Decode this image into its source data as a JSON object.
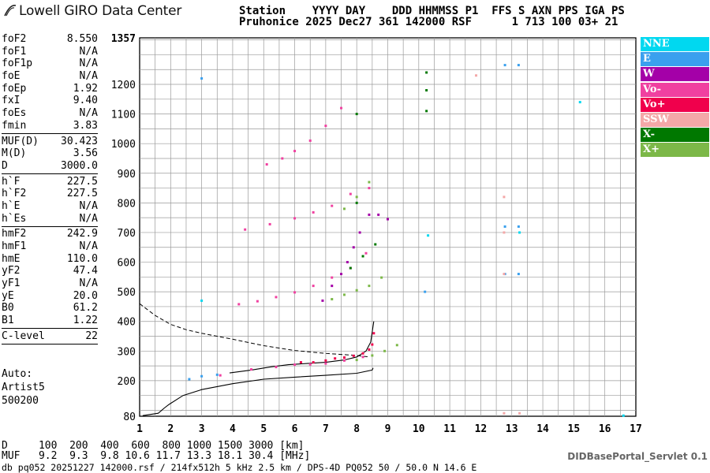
{
  "logo_text": "Lowell GIRO Data Center",
  "header": {
    "line1": "Station    YYYY DAY    DDD HHMMSS P1  FFS S AXN PPS IGA PS",
    "line2": "Pruhonice 2025 Dec27 361 142000 RSF      1 713 100 03+ 21"
  },
  "params": [
    [
      [
        "foF2",
        "8.550"
      ],
      [
        "foF1",
        "N/A"
      ],
      [
        "foF1p",
        "N/A"
      ],
      [
        "foE",
        "N/A"
      ],
      [
        "foEp",
        "1.92"
      ],
      [
        "fxI",
        "9.40"
      ],
      [
        "foEs",
        "N/A"
      ],
      [
        "fmin",
        "3.83"
      ]
    ],
    [
      [
        "MUF(D)",
        "30.423"
      ],
      [
        "M(D)",
        "3.56"
      ],
      [
        "D",
        "3000.0"
      ]
    ],
    [
      [
        "h`F",
        "227.5"
      ],
      [
        "h`F2",
        "227.5"
      ],
      [
        "h`E",
        "N/A"
      ],
      [
        "h`Es",
        "N/A"
      ]
    ],
    [
      [
        "hmF2",
        "242.9"
      ],
      [
        "hmF1",
        "N/A"
      ],
      [
        "hmE",
        "110.0"
      ],
      [
        "yF2",
        "47.4"
      ],
      [
        "yF1",
        "N/A"
      ],
      [
        "yE",
        "20.0"
      ],
      [
        "B0",
        "61.2"
      ],
      [
        "B1",
        "1.22"
      ]
    ],
    [
      [
        "C-level",
        "22"
      ]
    ]
  ],
  "auto": {
    "line1": "Auto:",
    "line2": "Artist5",
    "line3": "500200"
  },
  "legend": [
    {
      "label": "NNE",
      "color": "#00d8f0"
    },
    {
      "label": "E",
      "color": "#3aa0ee"
    },
    {
      "label": "W",
      "color": "#a400a8"
    },
    {
      "label": "Vo-",
      "color": "#f040a0"
    },
    {
      "label": "Vo+",
      "color": "#f0004c"
    },
    {
      "label": "SSW",
      "color": "#f4a8a8"
    },
    {
      "label": "X-",
      "color": "#007800"
    },
    {
      "label": "X+",
      "color": "#7cb848"
    }
  ],
  "bottom": {
    "d_row": "D     100  200  400  600  800 1000 1500 3000 [km]",
    "muf_row": "MUF   9.2  9.3  9.8 10.6 11.7 13.3 18.1 30.4 [MHz]",
    "info": "db pq052 20251227 142000.rsf / 214fx512h 5 kHz 2.5 km / DPS-4D PQ052 50 / 50.0 N 14.6 E"
  },
  "servlet": "DIDBasePortal_Servlet 0.1",
  "chart_data": {
    "type": "scatter",
    "xlabel": "",
    "ylabel": "",
    "x_ticks": [
      "1",
      "2",
      "3",
      "4",
      "5",
      "6",
      "7",
      "8",
      "9",
      "10",
      "11",
      "12",
      "13",
      "14",
      "15",
      "16",
      "17"
    ],
    "y_ticks": [
      "1357",
      "1200",
      "1100",
      "1000",
      "900",
      "800",
      "700",
      "600",
      "500",
      "400",
      "300",
      "200",
      "80"
    ],
    "xlim": [
      1,
      17
    ],
    "ylim": [
      80,
      1357
    ],
    "grid": true,
    "series": [
      {
        "name": "Vo+",
        "color": "#f0004c",
        "points": [
          [
            6.2,
            262
          ],
          [
            6.6,
            262
          ],
          [
            7.0,
            268
          ],
          [
            7.3,
            275
          ],
          [
            7.6,
            278
          ],
          [
            7.9,
            284
          ],
          [
            8.2,
            292
          ],
          [
            8.4,
            305
          ],
          [
            8.5,
            322
          ],
          [
            8.55,
            360
          ]
        ]
      },
      {
        "name": "W",
        "color": "#a400a8",
        "points": [
          [
            6.9,
            470
          ],
          [
            7.2,
            520
          ],
          [
            7.5,
            560
          ],
          [
            7.7,
            600
          ],
          [
            7.9,
            650
          ],
          [
            8.1,
            700
          ],
          [
            8.4,
            760
          ],
          [
            8.7,
            760
          ],
          [
            9.0,
            745
          ]
        ]
      },
      {
        "name": "Vo-",
        "color": "#f040a0",
        "points": [
          [
            4.2,
            458
          ],
          [
            4.8,
            468
          ],
          [
            5.4,
            482
          ],
          [
            6.0,
            498
          ],
          [
            6.6,
            520
          ],
          [
            7.2,
            548
          ],
          [
            7.8,
            580
          ],
          [
            8.3,
            630
          ],
          [
            3.6,
            218
          ],
          [
            4.6,
            238
          ],
          [
            5.4,
            246
          ],
          [
            6.0,
            254
          ],
          [
            6.5,
            255
          ],
          [
            7.0,
            258
          ],
          [
            7.6,
            268
          ],
          [
            8.2,
            280
          ],
          [
            4.4,
            710
          ],
          [
            5.2,
            728
          ],
          [
            6.0,
            748
          ],
          [
            6.6,
            768
          ],
          [
            7.2,
            790
          ],
          [
            7.8,
            830
          ],
          [
            8.4,
            850
          ],
          [
            5.1,
            930
          ],
          [
            5.6,
            950
          ],
          [
            6.0,
            975
          ],
          [
            6.5,
            1010
          ],
          [
            7.0,
            1060
          ],
          [
            7.5,
            1120
          ]
        ]
      },
      {
        "name": "X+",
        "color": "#7cb848",
        "points": [
          [
            7.2,
            475
          ],
          [
            7.6,
            490
          ],
          [
            8.0,
            505
          ],
          [
            8.4,
            520
          ],
          [
            8.8,
            548
          ],
          [
            8.0,
            270
          ],
          [
            8.5,
            285
          ],
          [
            8.9,
            300
          ],
          [
            9.3,
            320
          ],
          [
            7.6,
            780
          ],
          [
            8.0,
            820
          ],
          [
            8.4,
            870
          ]
        ]
      },
      {
        "name": "X-",
        "color": "#007800",
        "points": [
          [
            7.8,
            580
          ],
          [
            8.2,
            620
          ],
          [
            8.6,
            660
          ],
          [
            10.25,
            1240
          ],
          [
            10.25,
            1180
          ],
          [
            10.25,
            1110
          ],
          [
            8.0,
            1100
          ],
          [
            8.0,
            800
          ]
        ]
      },
      {
        "name": "E",
        "color": "#3aa0ee",
        "points": [
          [
            2.6,
            205
          ],
          [
            3.0,
            215
          ],
          [
            3.5,
            220
          ],
          [
            12.78,
            720
          ],
          [
            12.78,
            560
          ],
          [
            13.22,
            720
          ],
          [
            13.22,
            560
          ],
          [
            12.78,
            1265
          ],
          [
            13.22,
            1265
          ],
          [
            3.0,
            1220
          ],
          [
            10.2,
            500
          ]
        ]
      },
      {
        "name": "NNE",
        "color": "#00d8f0",
        "points": [
          [
            3.0,
            470
          ],
          [
            10.3,
            690
          ],
          [
            13.25,
            700
          ],
          [
            15.2,
            1140
          ],
          [
            16.6,
            82
          ]
        ]
      },
      {
        "name": "SSW",
        "color": "#f4a8a8",
        "points": [
          [
            12.75,
            820
          ],
          [
            12.75,
            700
          ],
          [
            12.75,
            560
          ],
          [
            11.85,
            1230
          ],
          [
            12.75,
            90
          ],
          [
            13.25,
            90
          ]
        ]
      }
    ],
    "profile_curve": [
      [
        1.1,
        82
      ],
      [
        1.6,
        90
      ],
      [
        1.8,
        108
      ],
      [
        1.95,
        120
      ],
      [
        2.4,
        150
      ],
      [
        3.0,
        170
      ],
      [
        4.0,
        190
      ],
      [
        5.0,
        205
      ],
      [
        6.0,
        212
      ],
      [
        7.0,
        218
      ],
      [
        8.0,
        225
      ],
      [
        8.5,
        236
      ],
      [
        8.53,
        243
      ]
    ],
    "trace_curve": [
      [
        3.9,
        226
      ],
      [
        4.6,
        236
      ],
      [
        5.2,
        246
      ],
      [
        5.8,
        254
      ],
      [
        6.4,
        258
      ],
      [
        7.0,
        262
      ],
      [
        7.6,
        270
      ],
      [
        8.0,
        280
      ],
      [
        8.3,
        300
      ],
      [
        8.45,
        330
      ],
      [
        8.55,
        400
      ]
    ],
    "dashed_curve": [
      [
        1.0,
        460
      ],
      [
        1.5,
        420
      ],
      [
        2.0,
        390
      ],
      [
        2.5,
        372
      ],
      [
        3.0,
        360
      ],
      [
        4.0,
        340
      ],
      [
        5.0,
        318
      ],
      [
        6.0,
        302
      ],
      [
        7.0,
        292
      ],
      [
        8.0,
        285
      ],
      [
        8.4,
        280
      ]
    ]
  }
}
